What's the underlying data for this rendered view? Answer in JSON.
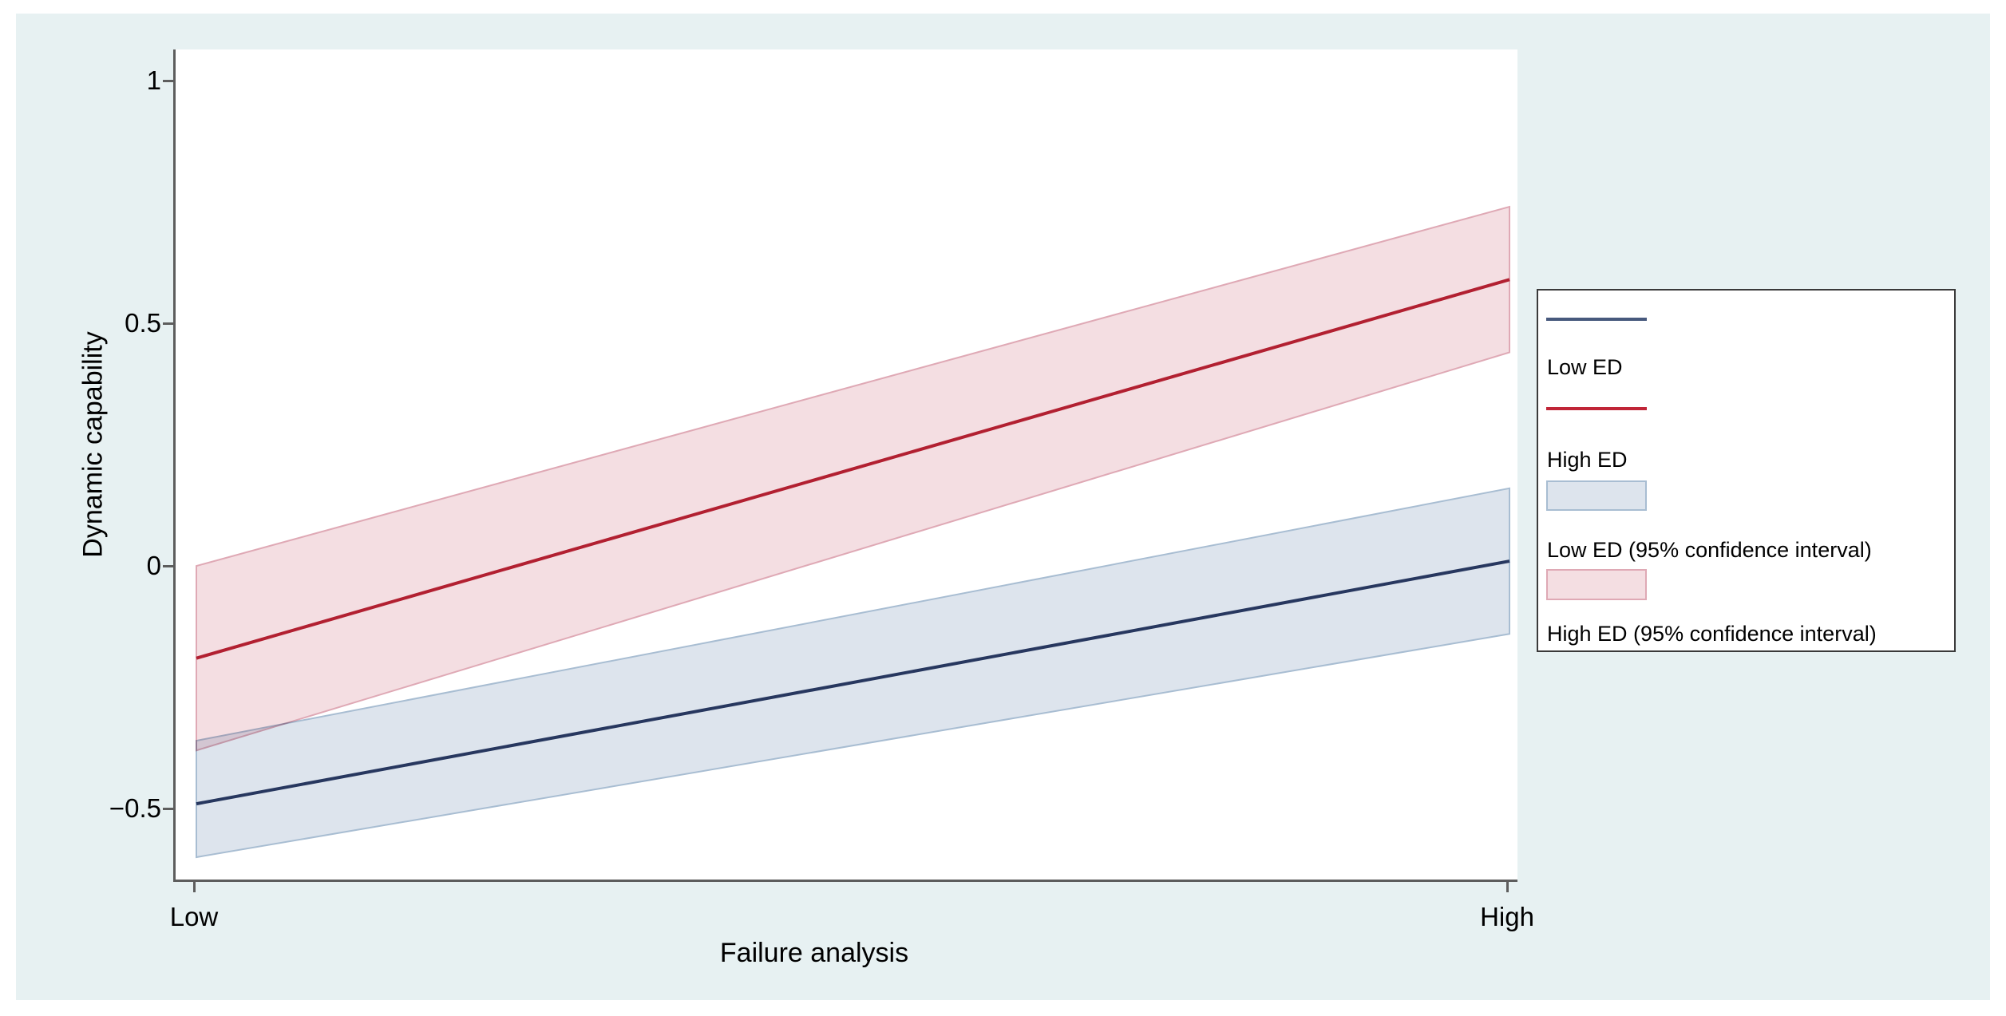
{
  "figure": {
    "canvas_bg": "#e7f1f2",
    "plot_bg": "#ffffff",
    "axis_color": "#5d5d5d",
    "text_color": "#000000",
    "legend_border": "#3a3a3a"
  },
  "chart_data": {
    "type": "line",
    "title": "",
    "xlabel": "Failure analysis",
    "ylabel": "Dynamic capability",
    "x_categories": [
      "Low",
      "High"
    ],
    "x": [
      0,
      1
    ],
    "y_ticks": [
      1,
      0.5,
      0,
      -0.5
    ],
    "y_tick_labels": [
      "1",
      "0.5",
      "0",
      "−0.5"
    ],
    "ylim": [
      -0.646,
      1.064
    ],
    "grid": false,
    "legend_position": "right-outside",
    "series": [
      {
        "name": "High ED",
        "values": [
          -0.19,
          0.59
        ],
        "ci_lower": [
          -0.38,
          0.44
        ],
        "ci_upper": [
          0.0,
          0.74
        ],
        "line_color": "#b22031",
        "band_color": "#f4dee2",
        "band_edge_color": "#dfa9b5"
      },
      {
        "name": "Low ED",
        "values": [
          -0.49,
          0.01
        ],
        "ci_lower": [
          -0.6,
          -0.14
        ],
        "ci_upper": [
          -0.36,
          0.16
        ],
        "line_color": "#27375f",
        "band_color": "#dde4ed",
        "band_edge_color": "#a8bdd2"
      }
    ]
  },
  "legend": {
    "items": [
      {
        "label": "Low ED",
        "swatch": "line",
        "color": "#47597d"
      },
      {
        "label": "High ED",
        "swatch": "line",
        "color": "#c02537"
      },
      {
        "label": "Low ED (95% confidence interval)",
        "swatch": "rect",
        "color": "#dde4ed",
        "edge": "#a8bdd2"
      },
      {
        "label": "High ED (95% confidence interval)",
        "swatch": "rect",
        "color": "#f4dee2",
        "edge": "#dfa9b5"
      }
    ]
  }
}
